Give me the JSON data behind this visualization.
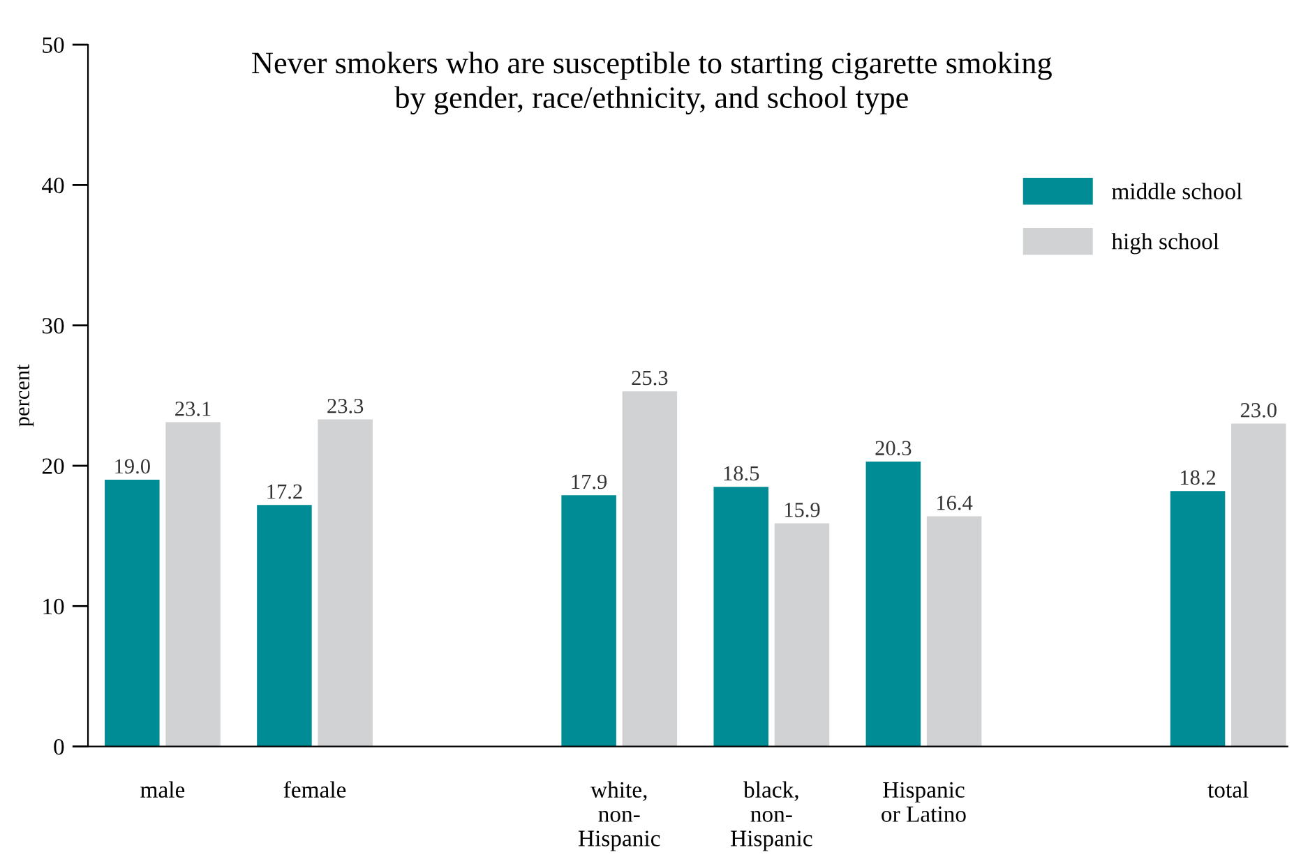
{
  "chart_data": {
    "type": "bar",
    "title": "Never smokers who are susceptible to starting cigarette smoking\nby gender, race/ethnicity, and school type",
    "ylabel": "percent",
    "categories": [
      "male",
      "female",
      null,
      "white,\nnon-\nHispanic",
      "black,\nnon-\nHispanic",
      "Hispanic\nor Latino",
      null,
      "total"
    ],
    "series": [
      {
        "name": "middle school",
        "color": "#008c95",
        "values": [
          19.0,
          17.2,
          null,
          17.9,
          18.5,
          20.3,
          null,
          18.2
        ],
        "value_labels": [
          "19.0",
          "17.2",
          null,
          "17.9",
          "18.5",
          "20.3",
          null,
          "18.2"
        ]
      },
      {
        "name": "high school",
        "color": "#d1d2d4",
        "values": [
          23.1,
          23.3,
          null,
          25.3,
          15.9,
          16.4,
          null,
          23.0
        ],
        "value_labels": [
          "23.1",
          "23.3",
          null,
          "25.3",
          "15.9",
          "16.4",
          null,
          "23.0"
        ]
      }
    ],
    "ylim": [
      0,
      50
    ],
    "yticks": [
      0,
      10,
      20,
      30,
      40,
      50
    ],
    "grid": false,
    "legend": "top right"
  }
}
